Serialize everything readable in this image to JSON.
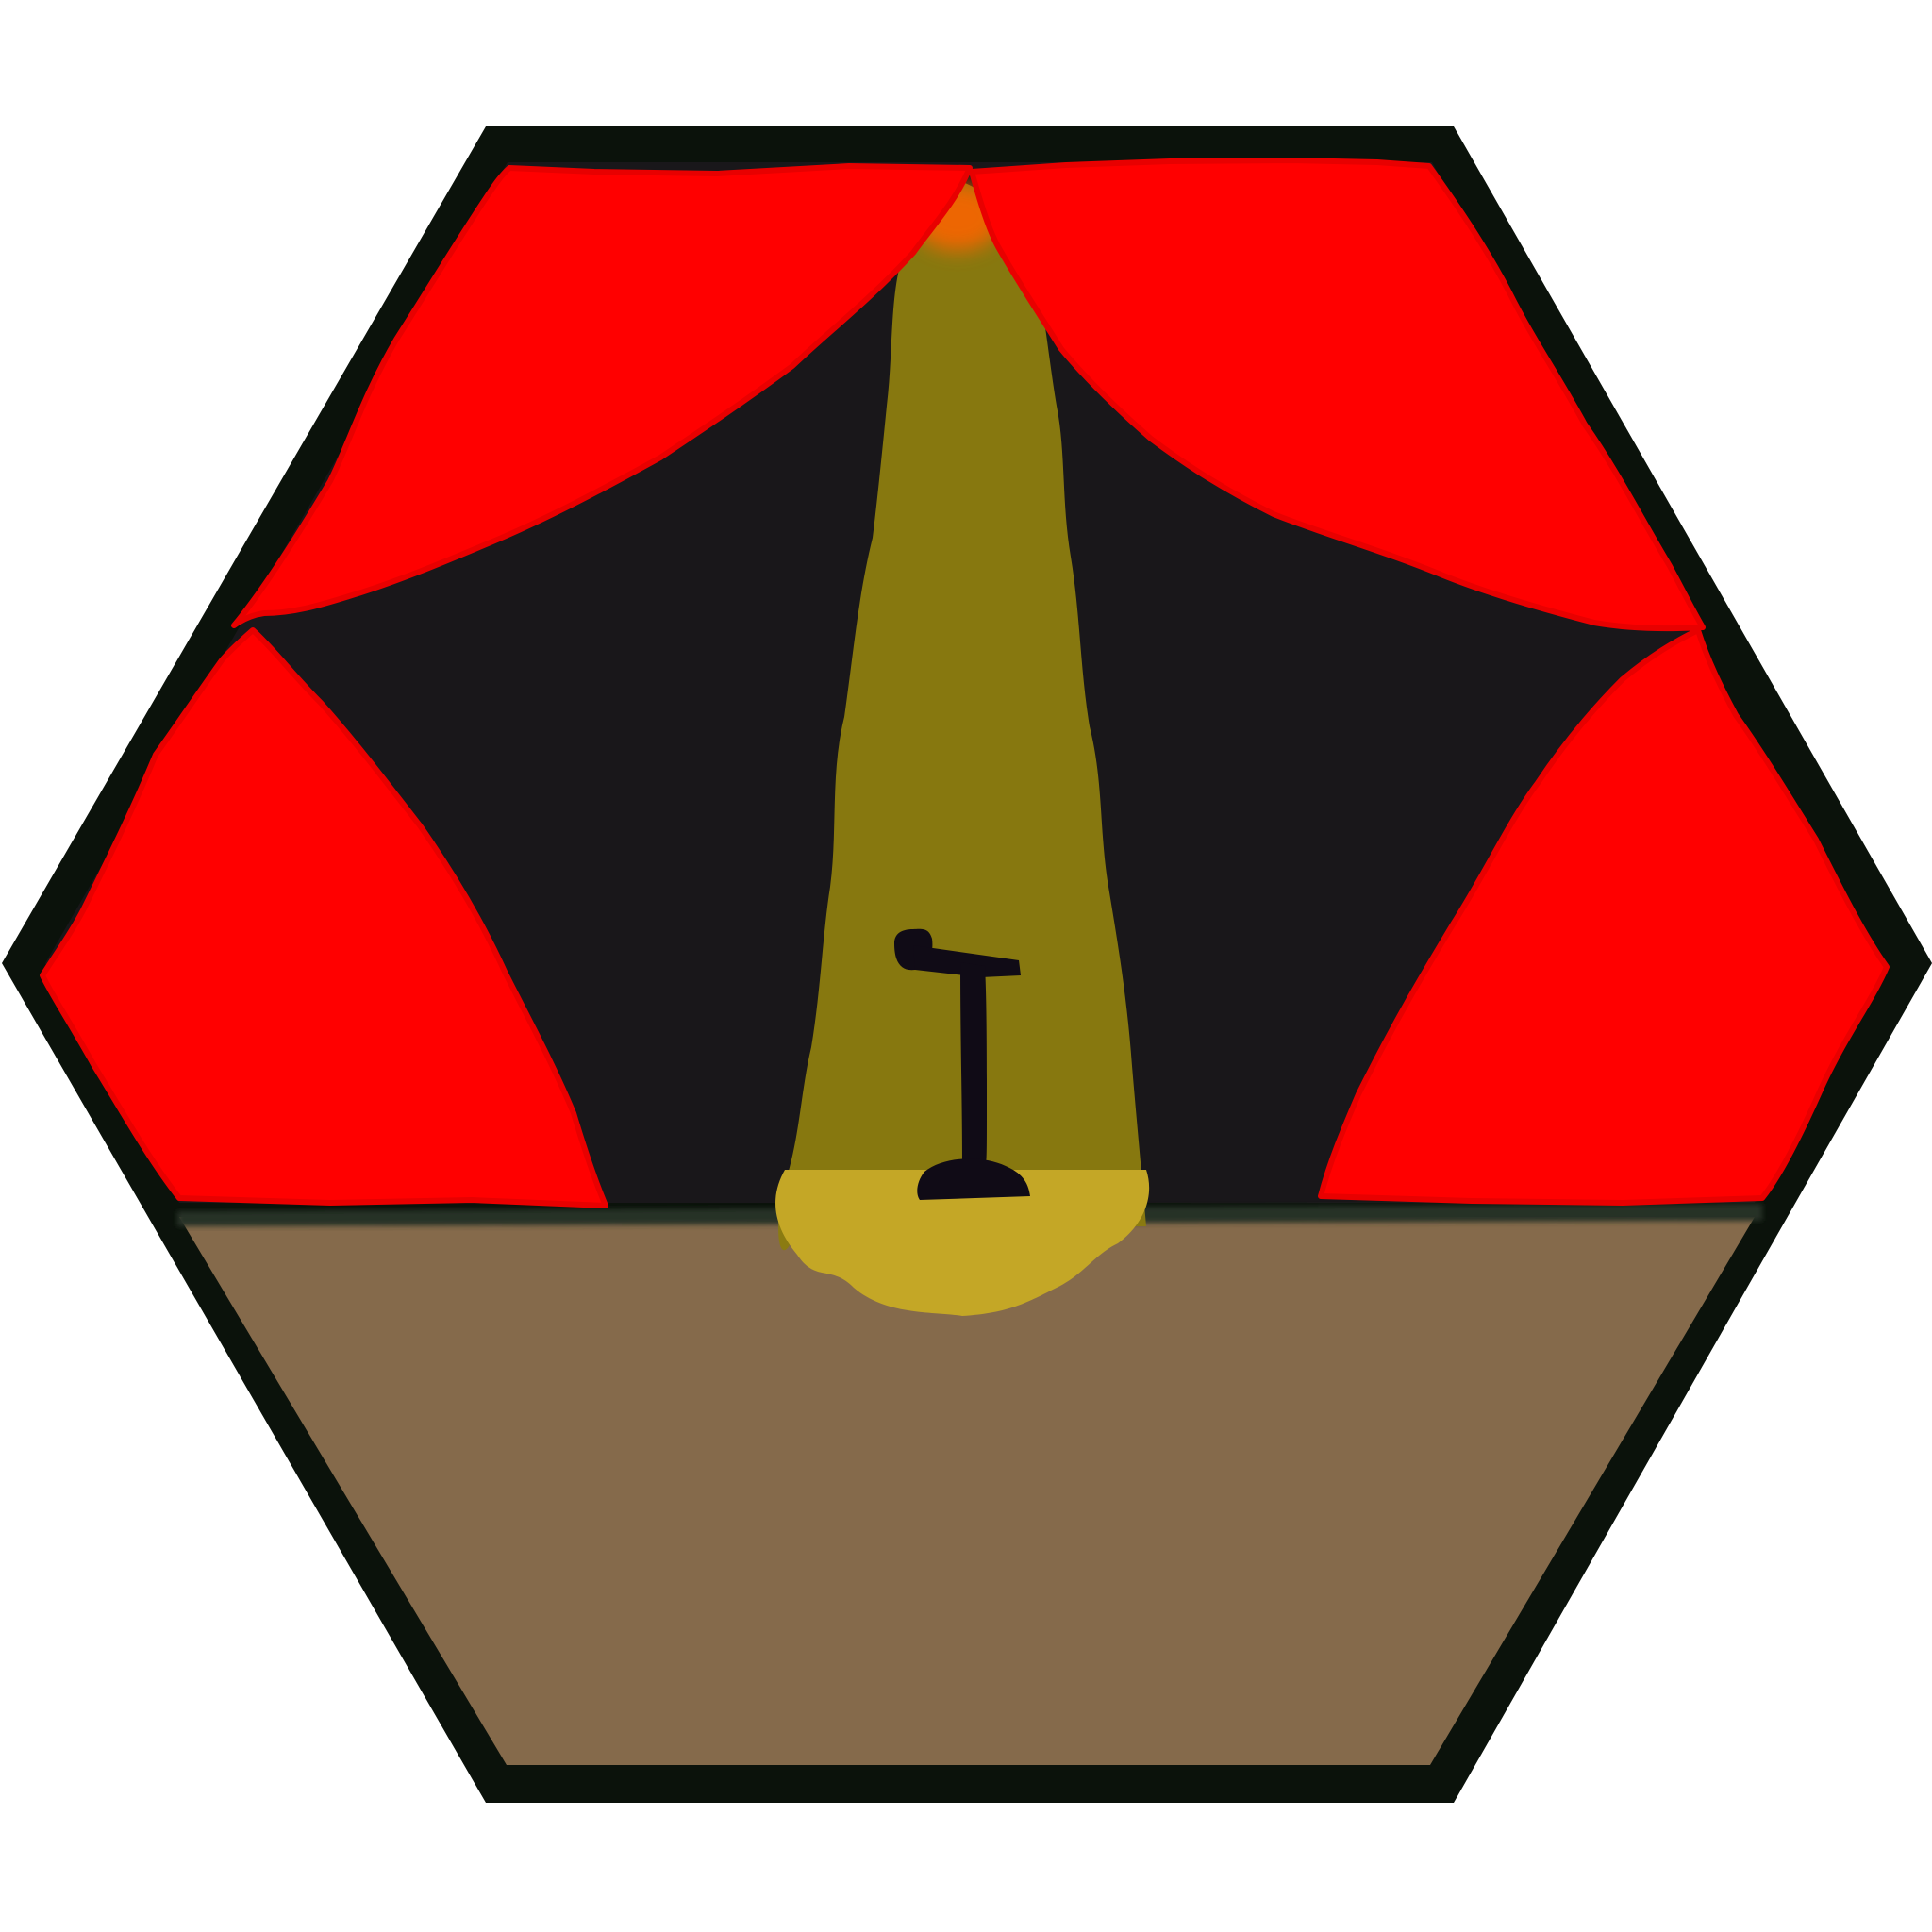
{
  "scene": {
    "subject": "stage-with-microphone",
    "colors": {
      "background": "#ffffff",
      "frame": "#0b120b",
      "backdrop": "#19171a",
      "curtain_fill": "#ff0000",
      "curtain_outline": "#e80000",
      "floor": "#856a4b",
      "stage_edge": "#263226",
      "spotlight_beam": "#8b7c0f",
      "spotlight_pool": "#c4a726",
      "spotlight_source": "#ff6400",
      "microphone": "#100b16"
    },
    "icons": {
      "microphone": "microphone-stand-icon",
      "spotlight": "spotlight-beam-icon"
    }
  }
}
